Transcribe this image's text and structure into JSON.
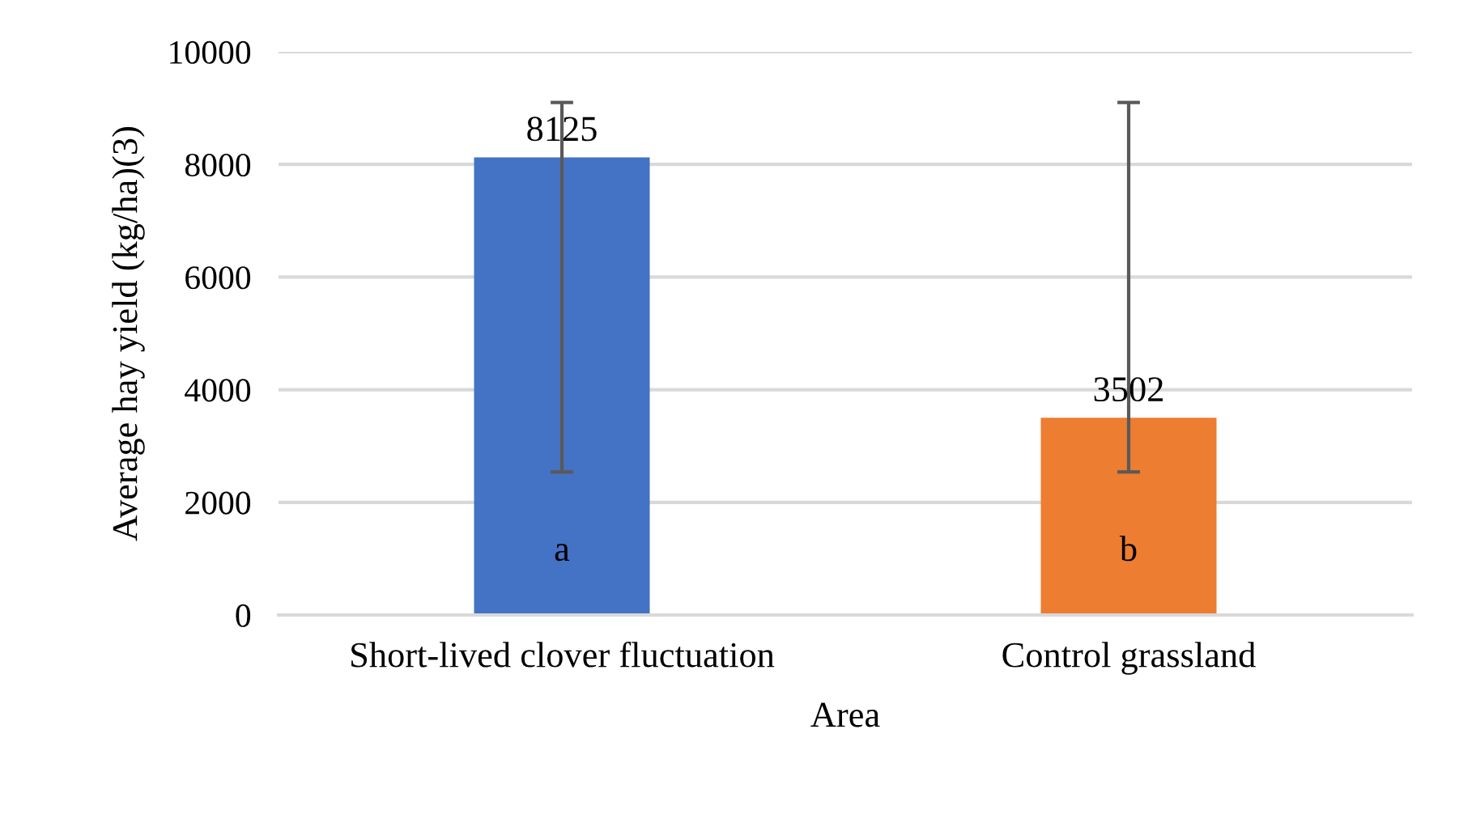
{
  "chart_data": {
    "type": "bar",
    "xlabel": "Area",
    "ylabel": "Average hay yield (kg/ha)(3)",
    "categories": [
      "Short-lived clover fluctuation",
      "Control grassland"
    ],
    "values": [
      8125,
      3502
    ],
    "colors": [
      "#4472c4",
      "#ed7d31"
    ],
    "errors": [
      [
        2540,
        9100
      ],
      [
        2540,
        9100
      ]
    ],
    "data_labels": true,
    "annotations": [
      "a",
      "b"
    ],
    "ylim": [
      0,
      10000
    ],
    "yticks": [
      0,
      2000,
      4000,
      6000,
      8000,
      10000
    ],
    "grid": "y",
    "legend": false
  }
}
